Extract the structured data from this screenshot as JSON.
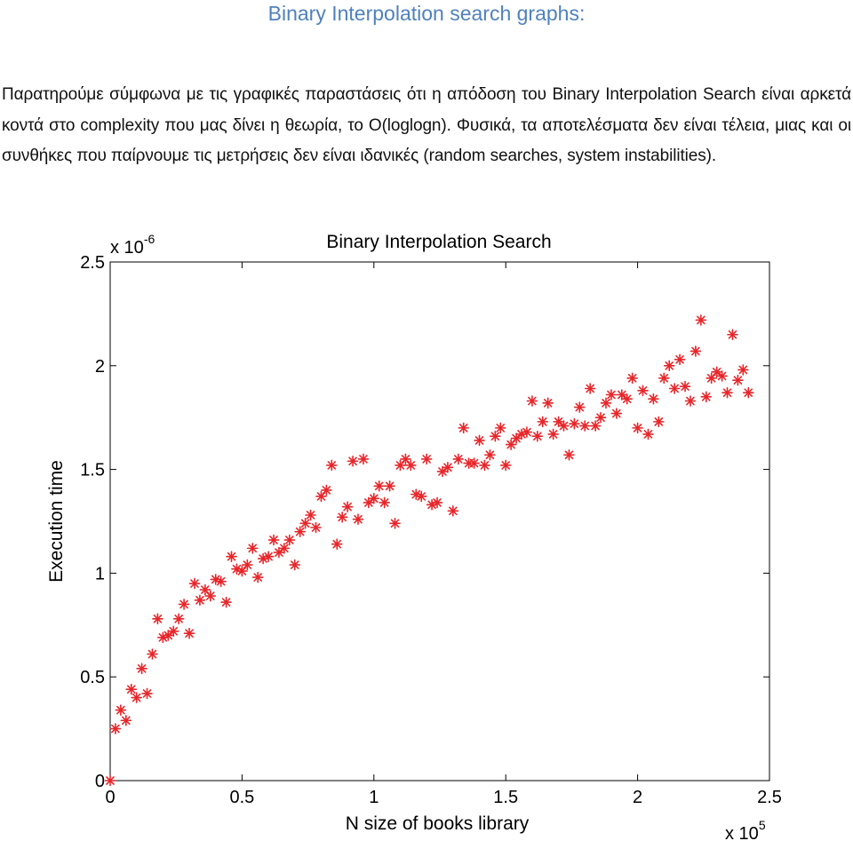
{
  "document": {
    "heading": "Binary Interpolation search graphs:",
    "paragraph": "Παρατηρούμε σύμφωνα με τις γραφικές παραστάσεις ότι η απόδοση του Binary Interpolation Search είναι αρκετά κοντά στο complexity που μας δίνει η θεωρία, το O(loglogn). Φυσικά, τα αποτελέσματα δεν είναι τέλεια, μιας και οι συνθήκες που παίρνουμε τις μετρήσεις δεν είναι ιδανικές (random searches, system instabilities)."
  },
  "chart_data": {
    "type": "scatter",
    "title": "Binary Interpolation Search",
    "xlabel": "N size of books library",
    "ylabel": "Execution time",
    "x_multiplier_label": "x 10",
    "x_multiplier_exp": "5",
    "y_multiplier_label": "x 10",
    "y_multiplier_exp": "-6",
    "xlim": [
      0,
      2.5
    ],
    "ylim": [
      0,
      2.5
    ],
    "x_ticks": [
      0,
      0.5,
      1,
      1.5,
      2,
      2.5
    ],
    "x_tick_labels": [
      "0",
      "0.5",
      "1",
      "1.5",
      "2",
      "2.5"
    ],
    "y_ticks": [
      0,
      0.5,
      1,
      1.5,
      2,
      2.5
    ],
    "y_tick_labels": [
      "0",
      "0.5",
      "1",
      "1.5",
      "2",
      "2.5"
    ],
    "grid": false,
    "marker": "asterisk",
    "marker_color": "#e8262a",
    "series": [
      {
        "x": [
          0.0,
          0.02,
          0.04,
          0.06,
          0.08,
          0.1,
          0.12,
          0.14,
          0.16,
          0.18,
          0.2,
          0.22,
          0.24,
          0.26,
          0.28,
          0.3,
          0.32,
          0.34,
          0.36,
          0.38,
          0.4,
          0.42,
          0.44,
          0.46,
          0.48,
          0.5,
          0.52,
          0.54,
          0.56,
          0.58,
          0.6,
          0.62,
          0.64,
          0.66,
          0.68,
          0.7,
          0.72,
          0.74,
          0.76,
          0.78,
          0.8,
          0.82,
          0.84,
          0.86,
          0.88,
          0.9,
          0.92,
          0.94,
          0.96,
          0.98,
          1.0,
          1.02,
          1.04,
          1.06,
          1.08,
          1.1,
          1.12,
          1.14,
          1.16,
          1.18,
          1.2,
          1.22,
          1.24,
          1.26,
          1.28,
          1.3,
          1.32,
          1.34,
          1.36,
          1.38,
          1.4,
          1.42,
          1.44,
          1.46,
          1.48,
          1.5,
          1.52,
          1.54,
          1.56,
          1.58,
          1.6,
          1.62,
          1.64,
          1.66,
          1.68,
          1.7,
          1.72,
          1.74,
          1.76,
          1.78,
          1.8,
          1.82,
          1.84,
          1.86,
          1.88,
          1.9,
          1.92,
          1.94,
          1.96,
          1.98,
          2.0,
          2.02,
          2.04,
          2.06,
          2.08,
          2.1,
          2.12,
          2.14,
          2.16,
          2.18,
          2.2,
          2.22,
          2.24,
          2.26,
          2.28,
          2.3,
          2.32,
          2.34,
          2.36,
          2.38,
          2.4,
          2.42
        ],
        "y": [
          0.0,
          0.25,
          0.34,
          0.29,
          0.44,
          0.4,
          0.54,
          0.42,
          0.61,
          0.78,
          0.69,
          0.7,
          0.72,
          0.78,
          0.85,
          0.71,
          0.95,
          0.87,
          0.92,
          0.89,
          0.97,
          0.96,
          0.86,
          1.08,
          1.02,
          1.01,
          1.04,
          1.12,
          0.98,
          1.07,
          1.08,
          1.16,
          1.1,
          1.12,
          1.16,
          1.04,
          1.2,
          1.24,
          1.28,
          1.22,
          1.37,
          1.4,
          1.52,
          1.14,
          1.27,
          1.32,
          1.54,
          1.26,
          1.55,
          1.34,
          1.36,
          1.42,
          1.34,
          1.42,
          1.24,
          1.52,
          1.55,
          1.52,
          1.38,
          1.37,
          1.55,
          1.33,
          1.34,
          1.49,
          1.51,
          1.3,
          1.55,
          1.7,
          1.53,
          1.53,
          1.64,
          1.52,
          1.57,
          1.66,
          1.7,
          1.52,
          1.62,
          1.65,
          1.67,
          1.68,
          1.83,
          1.66,
          1.73,
          1.82,
          1.67,
          1.73,
          1.71,
          1.57,
          1.72,
          1.8,
          1.71,
          1.89,
          1.71,
          1.75,
          1.82,
          1.86,
          1.77,
          1.86,
          1.84,
          1.94,
          1.7,
          1.88,
          1.67,
          1.84,
          1.73,
          1.94,
          2.0,
          1.89,
          2.03,
          1.9,
          1.83,
          2.07,
          2.22,
          1.85,
          1.94,
          1.97,
          1.95,
          1.87,
          2.15,
          1.93,
          1.98,
          1.87
        ]
      }
    ]
  }
}
